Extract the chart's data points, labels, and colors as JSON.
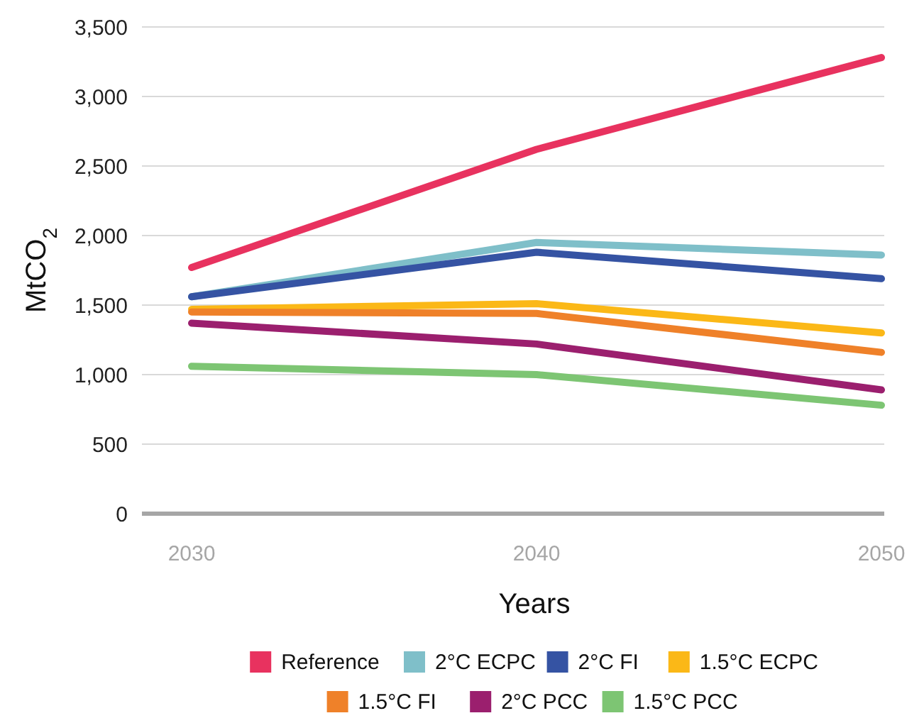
{
  "chart_data": {
    "type": "line",
    "xlabel": "Years",
    "ylabel": "MtCO$_{2}$",
    "categories": [
      "2030",
      "2040",
      "2050"
    ],
    "ylim": [
      0,
      3500
    ],
    "yticks": [
      {
        "value": 0,
        "label": "0"
      },
      {
        "value": 500,
        "label": "500"
      },
      {
        "value": 1000,
        "label": "1,000"
      },
      {
        "value": 1500,
        "label": "1,500"
      },
      {
        "value": 2000,
        "label": "2,000"
      },
      {
        "value": 2500,
        "label": "2,500"
      },
      {
        "value": 3000,
        "label": "3,000"
      },
      {
        "value": 3500,
        "label": "3,500"
      }
    ],
    "grid": "y",
    "legend": "bottom",
    "marker": "none",
    "line_style": "solid",
    "series": [
      {
        "name": "Reference",
        "color": "#e8325f",
        "values": [
          1770,
          2620,
          3280
        ]
      },
      {
        "name": "2°C ECPC",
        "color": "#7fbfc9",
        "values": [
          1560,
          1950,
          1860
        ]
      },
      {
        "name": "2°C FI",
        "color": "#3553a3",
        "values": [
          1560,
          1880,
          1690
        ]
      },
      {
        "name": "1.5°C ECPC",
        "color": "#fbb817",
        "values": [
          1470,
          1510,
          1300
        ]
      },
      {
        "name": "1.5°C FI",
        "color": "#ef8129",
        "values": [
          1450,
          1440,
          1160
        ]
      },
      {
        "name": "2°C PCC",
        "color": "#9b1f6e",
        "values": [
          1370,
          1220,
          890
        ]
      },
      {
        "name": "1.5°C PCC",
        "color": "#7dc573",
        "values": [
          1060,
          1000,
          780
        ]
      }
    ]
  }
}
